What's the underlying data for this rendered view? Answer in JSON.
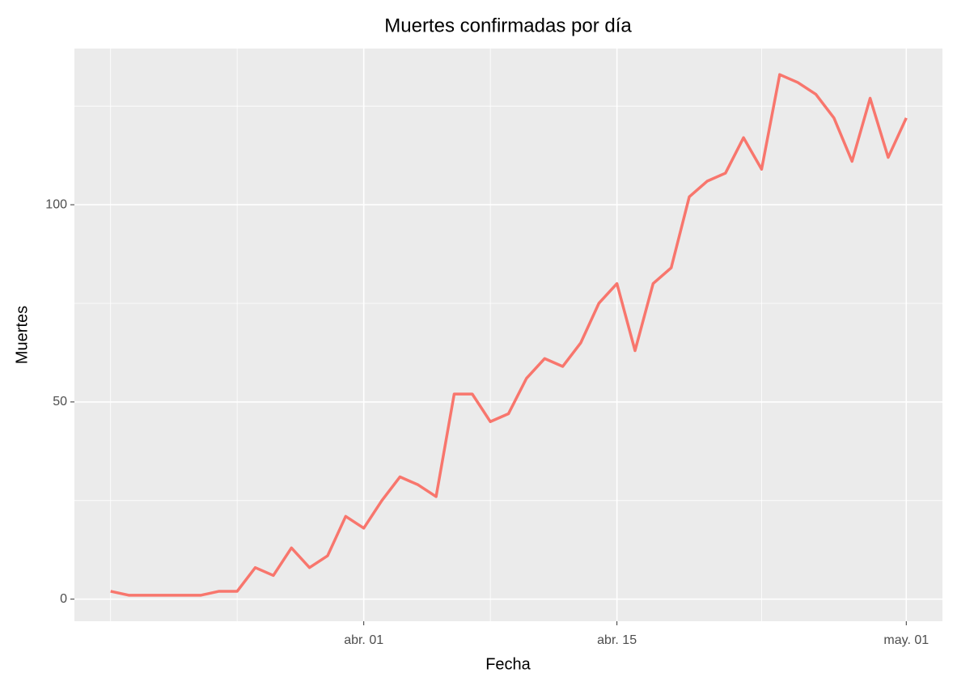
{
  "chart_data": {
    "type": "line",
    "title": "Muertes confirmadas por día",
    "x_label": "Fecha",
    "y_label": "Muertes",
    "x": [
      "03-18",
      "03-19",
      "03-20",
      "03-21",
      "03-22",
      "03-23",
      "03-24",
      "03-25",
      "03-26",
      "03-27",
      "03-28",
      "03-29",
      "03-30",
      "03-31",
      "04-01",
      "04-02",
      "04-03",
      "04-04",
      "04-05",
      "04-06",
      "04-07",
      "04-08",
      "04-09",
      "04-10",
      "04-11",
      "04-12",
      "04-13",
      "04-14",
      "04-15",
      "04-16",
      "04-17",
      "04-18",
      "04-19",
      "04-20",
      "04-21",
      "04-22",
      "04-23",
      "04-24",
      "04-25",
      "04-26",
      "04-27",
      "04-28",
      "04-29",
      "04-30",
      "05-01"
    ],
    "series": [
      {
        "name": "Muertes",
        "color": "#F8766D",
        "values": [
          2,
          1,
          1,
          1,
          1,
          1,
          2,
          2,
          8,
          6,
          13,
          8,
          11,
          21,
          18,
          25,
          31,
          29,
          26,
          52,
          52,
          45,
          47,
          56,
          61,
          59,
          65,
          75,
          80,
          63,
          80,
          84,
          102,
          106,
          108,
          117,
          109,
          133,
          131,
          128,
          122,
          111,
          127,
          112,
          122
        ]
      }
    ],
    "xlim": [
      "03-16",
      "05-03"
    ],
    "xticks": [
      {
        "value": "04-01",
        "label": "abr. 01"
      },
      {
        "value": "04-15",
        "label": "abr. 15"
      },
      {
        "value": "05-01",
        "label": "may. 01"
      }
    ],
    "xminorticks": [
      "03-18",
      "03-25",
      "04-08",
      "04-23"
    ],
    "ylim": [
      -5.6,
      139.6
    ],
    "yticks": [
      0,
      50,
      100
    ],
    "yminorticks": [
      25,
      75,
      125
    ],
    "grid": true
  }
}
